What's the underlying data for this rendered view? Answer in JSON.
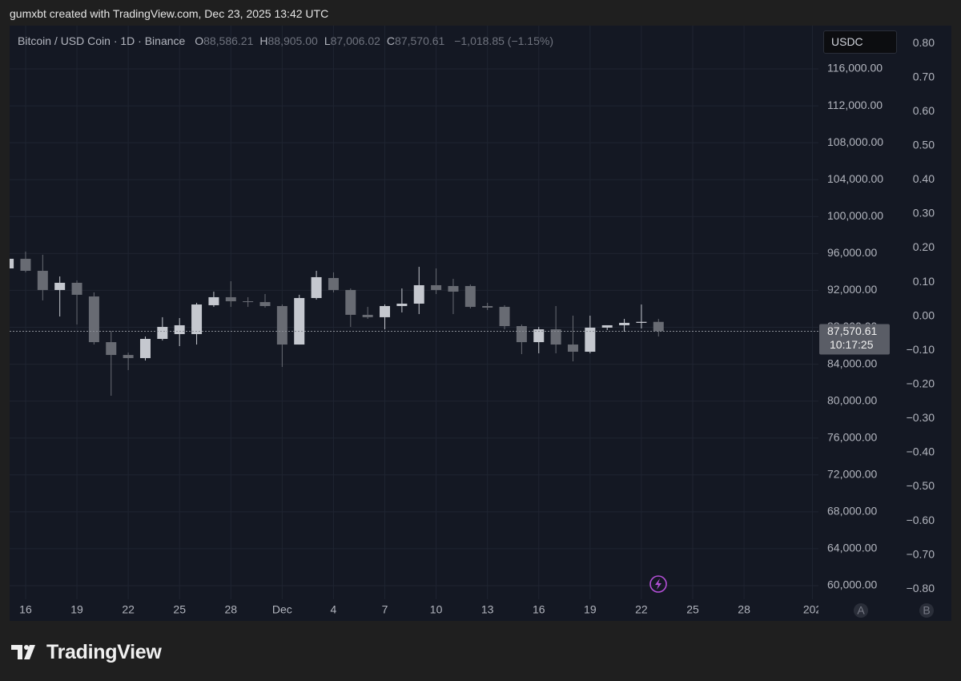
{
  "page": {
    "credit": "gumxbt created with TradingView.com, Dec 23, 2025 13:42 UTC",
    "brand": "TradingView"
  },
  "chart_data": {
    "type": "candlestick",
    "title": "Bitcoin / USD Coin · 1D · Binance",
    "ohlc_legend": [
      {
        "key": "O",
        "value": "88,586.21"
      },
      {
        "key": "H",
        "value": "88,905.00"
      },
      {
        "key": "L",
        "value": "87,006.02"
      },
      {
        "key": "C",
        "value": "87,570.61"
      }
    ],
    "change": "−1,018.85 (−1.15%)",
    "currency": "USDC",
    "categories": [
      null,
      "16",
      null,
      null,
      "19",
      null,
      null,
      "22",
      null,
      null,
      "25",
      null,
      null,
      "28",
      null,
      null,
      "Dec",
      null,
      null,
      "4",
      null,
      null,
      "7",
      null,
      null,
      "10",
      null,
      null,
      "13",
      null,
      null,
      "16",
      null,
      null,
      "19",
      null,
      null,
      "22",
      null,
      null,
      "25",
      null,
      null,
      "28",
      null,
      null,
      null,
      "202"
    ],
    "ohlc": {
      "open": [
        94380,
        95420,
        94120,
        92040,
        92820,
        91340,
        86390,
        85000,
        84660,
        86740,
        87260,
        87260,
        90390,
        91260,
        90820,
        90730,
        90300,
        86130,
        91170,
        93340,
        92040,
        89350,
        89090,
        90300,
        90560,
        92560,
        92470,
        92470,
        90300,
        90210,
        88130,
        86390,
        87780,
        86130,
        85350,
        87960,
        88220,
        88480,
        88586.21,
        null,
        null,
        null,
        null,
        null,
        null,
        null,
        null,
        null
      ],
      "high": [
        95860,
        96200,
        95860,
        93510,
        93080,
        91780,
        87610,
        85260,
        87000,
        89090,
        89000,
        90650,
        91860,
        92990,
        91260,
        91600,
        90470,
        91520,
        94120,
        93950,
        92210,
        90210,
        90470,
        92210,
        94550,
        94380,
        93250,
        92640,
        90650,
        90390,
        88300,
        88040,
        90300,
        89260,
        89260,
        88220,
        88910,
        90470,
        88905,
        null,
        null,
        null,
        null,
        null,
        null,
        null,
        null,
        null
      ],
      "low": [
        94120,
        93950,
        90910,
        89170,
        88300,
        86130,
        80580,
        83360,
        84400,
        86570,
        85960,
        86130,
        90210,
        90210,
        90210,
        90130,
        83700,
        86130,
        91000,
        91780,
        88040,
        88910,
        87780,
        89610,
        89430,
        91600,
        89430,
        90040,
        89870,
        87780,
        85090,
        85180,
        85180,
        84310,
        85180,
        87700,
        87520,
        87870,
        87006.02,
        null,
        null,
        null,
        null,
        null,
        null,
        null,
        null,
        null
      ],
      "close": [
        95420,
        94120,
        92040,
        92820,
        91520,
        86390,
        85000,
        84660,
        86740,
        88040,
        88220,
        90470,
        91260,
        90820,
        90730,
        90300,
        86130,
        91170,
        93430,
        92040,
        89350,
        89090,
        90300,
        90560,
        92560,
        92040,
        91860,
        90210,
        90130,
        88130,
        86390,
        87780,
        86130,
        85350,
        87960,
        88220,
        88480,
        88590,
        87570.61,
        null,
        null,
        null,
        null,
        null,
        null,
        null,
        null,
        null
      ],
      "up_color": "#c5c8cf",
      "down_color": "#686b73"
    },
    "last_price": {
      "value": 87570.61,
      "label": "87,570.61"
    },
    "countdown": "10:17:25",
    "ylim": [
      58524,
      120688
    ],
    "yticks": [
      {
        "value": 60000,
        "label": "60,000.00"
      },
      {
        "value": 64000,
        "label": "64,000.00"
      },
      {
        "value": 68000,
        "label": "68,000.00"
      },
      {
        "value": 72000,
        "label": "72,000.00"
      },
      {
        "value": 76000,
        "label": "76,000.00"
      },
      {
        "value": 80000,
        "label": "80,000.00"
      },
      {
        "value": 84000,
        "label": "84,000.00"
      },
      {
        "value": 88000,
        "label": "88,000.00"
      },
      {
        "value": 92000,
        "label": "92,000.00"
      },
      {
        "value": 96000,
        "label": "96,000.00"
      },
      {
        "value": 100000,
        "label": "100,000.00"
      },
      {
        "value": 104000,
        "label": "104,000.00"
      },
      {
        "value": 108000,
        "label": "108,000.00"
      },
      {
        "value": 112000,
        "label": "112,000.00"
      },
      {
        "value": 116000,
        "label": "116,000.00"
      }
    ],
    "y2lim": [
      -0.83,
      0.852
    ],
    "y2ticks": [
      {
        "value": -0.8,
        "label": "−0.80"
      },
      {
        "value": -0.7,
        "label": "−0.70"
      },
      {
        "value": -0.6,
        "label": "−0.60"
      },
      {
        "value": -0.5,
        "label": "−0.50"
      },
      {
        "value": -0.4,
        "label": "−0.40"
      },
      {
        "value": -0.3,
        "label": "−0.30"
      },
      {
        "value": -0.2,
        "label": "−0.20"
      },
      {
        "value": -0.1,
        "label": "−0.10"
      },
      {
        "value": 0,
        "label": "0.00"
      },
      {
        "value": 0.1,
        "label": "0.10"
      },
      {
        "value": 0.2,
        "label": "0.20"
      },
      {
        "value": 0.3,
        "label": "0.30"
      },
      {
        "value": 0.4,
        "label": "0.40"
      },
      {
        "value": 0.5,
        "label": "0.50"
      },
      {
        "value": 0.6,
        "label": "0.60"
      },
      {
        "value": 0.7,
        "label": "0.70"
      },
      {
        "value": 0.8,
        "label": "0.80"
      }
    ],
    "scale_buttons": [
      "A",
      "B"
    ],
    "grid": true
  }
}
